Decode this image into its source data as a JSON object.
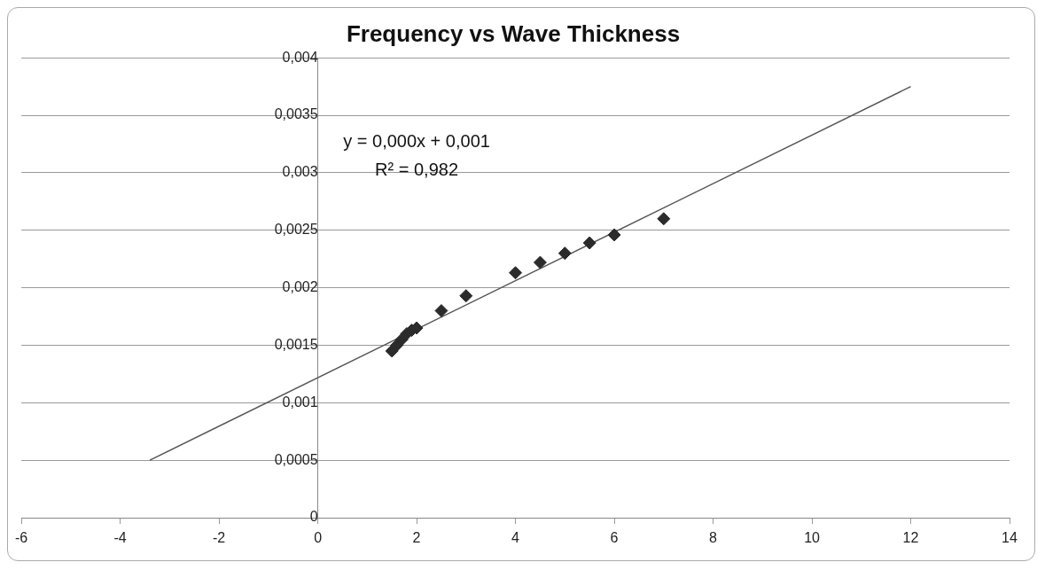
{
  "chart_data": {
    "type": "scatter",
    "title": "Frequency vs Wave Thickness",
    "series": [
      {
        "color": "#2b2b2b",
        "marker": "diamond",
        "x": [
          1.5,
          1.6,
          1.7,
          1.8,
          1.9,
          2,
          2.5,
          3,
          4,
          4.5,
          5,
          5.5,
          6,
          7
        ],
        "values": [
          0.00145,
          0.0015,
          0.00155,
          0.0016,
          0.00163,
          0.00165,
          0.0018,
          0.00193,
          0.00213,
          0.00222,
          0.0023,
          0.00239,
          0.00246,
          0.0026
        ]
      },
      {
        "type": "line",
        "color": "#555555",
        "marker": "none",
        "x": [
          -3.4,
          12
        ],
        "values": [
          0.0005,
          0.00375
        ]
      }
    ],
    "xlim": [
      -6,
      14
    ],
    "xticks": [
      -6,
      -4,
      -2,
      0,
      2,
      4,
      6,
      8,
      10,
      12,
      14
    ],
    "ylim": [
      0,
      0.004
    ],
    "yticks": [
      {
        "value": 0,
        "label": "0"
      },
      {
        "value": 0.0005,
        "label": "0,0005"
      },
      {
        "value": 0.001,
        "label": "0,001"
      },
      {
        "value": 0.0015,
        "label": "0,0015"
      },
      {
        "value": 0.002,
        "label": "0,002"
      },
      {
        "value": 0.0025,
        "label": "0,0025"
      },
      {
        "value": 0.003,
        "label": "0,003"
      },
      {
        "value": 0.0035,
        "label": "0,0035"
      },
      {
        "value": 0.004,
        "label": "0,004"
      }
    ],
    "grid": "y",
    "legend": false,
    "annotations": [
      "y = 0,000x + 0,001",
      "R² = 0,982"
    ]
  }
}
